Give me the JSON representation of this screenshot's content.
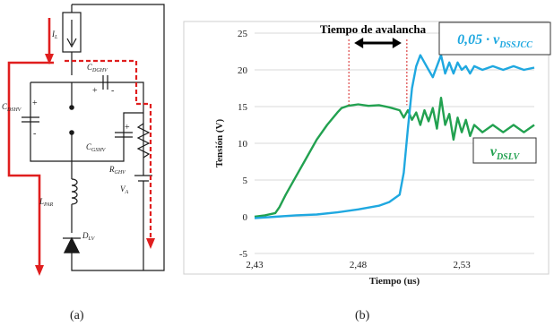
{
  "circuit": {
    "labels": {
      "il": "I",
      "il_sub": "L",
      "cdghv": "C",
      "cdghv_sub": "DGHV",
      "cdshv": "C",
      "cdshv_sub": "DSHV",
      "cgshv": "C",
      "cgshv_sub": "GSHV",
      "rghv": "R",
      "rghv_sub": "GHV",
      "va": "V",
      "va_sub": "A",
      "lpar": "L",
      "lpar_sub": "PAR",
      "dlv": "D",
      "dlv_sub": "LV"
    },
    "caption": "(a)"
  },
  "chart_data": {
    "type": "line",
    "xlabel": "Tiempo (us)",
    "ylabel": "Tensión (V)",
    "xlim": [
      2.43,
      2.565
    ],
    "ylim": [
      -5,
      25
    ],
    "xticks": [
      {
        "value": 2.43,
        "label": "2,43"
      },
      {
        "value": 2.48,
        "label": "2,48"
      },
      {
        "value": 2.53,
        "label": "2,53"
      }
    ],
    "yticks": [
      {
        "value": 25,
        "label": "25"
      },
      {
        "value": 20,
        "label": "20"
      },
      {
        "value": 15,
        "label": "15"
      },
      {
        "value": 10,
        "label": "10"
      },
      {
        "value": 5,
        "label": "5"
      },
      {
        "value": 0,
        "label": "0"
      },
      {
        "value": -5,
        "label": "-5"
      }
    ],
    "grid": "horizontal",
    "series": [
      {
        "name": "v",
        "name_sub": "DSLV",
        "color": "#22a150",
        "x": [
          2.43,
          2.435,
          2.44,
          2.442,
          2.445,
          2.45,
          2.455,
          2.46,
          2.465,
          2.47,
          2.472,
          2.475,
          2.48,
          2.485,
          2.49,
          2.495,
          2.5,
          2.502,
          2.504,
          2.506,
          2.508,
          2.51,
          2.512,
          2.514,
          2.516,
          2.518,
          2.52,
          2.522,
          2.524,
          2.526,
          2.528,
          2.53,
          2.532,
          2.534,
          2.536,
          2.54,
          2.545,
          2.55,
          2.555,
          2.56,
          2.565
        ],
        "values": [
          0,
          0.2,
          0.5,
          1.3,
          3,
          5.5,
          8,
          10.5,
          12.5,
          14.2,
          14.8,
          15.1,
          15.3,
          15.1,
          15.2,
          14.9,
          14.5,
          13.5,
          14.5,
          13.2,
          14.2,
          12.5,
          14.5,
          13,
          14.8,
          12,
          16.2,
          12.5,
          14,
          10.5,
          13.5,
          11.5,
          13.2,
          11,
          12.5,
          11.5,
          12.5,
          11.5,
          12.5,
          11.5,
          12.5
        ]
      },
      {
        "name": "0,05 · v",
        "name_sub": "DSSJCC",
        "color": "#1fa8e0",
        "x": [
          2.43,
          2.44,
          2.45,
          2.46,
          2.47,
          2.48,
          2.49,
          2.495,
          2.5,
          2.502,
          2.504,
          2.506,
          2.508,
          2.51,
          2.512,
          2.514,
          2.516,
          2.518,
          2.52,
          2.522,
          2.524,
          2.526,
          2.528,
          2.53,
          2.532,
          2.534,
          2.536,
          2.54,
          2.545,
          2.55,
          2.555,
          2.56,
          2.565
        ],
        "values": [
          -0.2,
          0,
          0.2,
          0.3,
          0.6,
          1,
          1.5,
          2,
          3,
          6,
          12,
          17.5,
          20.5,
          22,
          21,
          20,
          19,
          20.5,
          22,
          19.5,
          21,
          19.5,
          21,
          20,
          20.5,
          19.5,
          20.5,
          20,
          20.5,
          20,
          20.5,
          20,
          20.3
        ]
      }
    ],
    "annotations": {
      "avalanche_label": "Tiempo de avalancha",
      "markers_x": [
        2.4755,
        2.5035
      ],
      "marker_y": 15.2
    },
    "caption": "(b)"
  }
}
